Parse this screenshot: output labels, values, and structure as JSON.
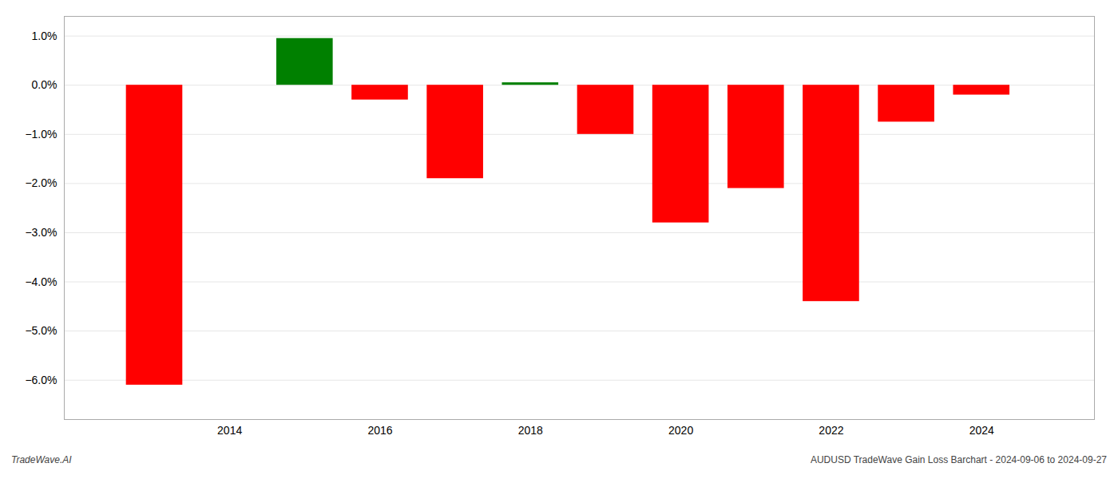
{
  "chart_data": {
    "type": "bar",
    "x": [
      2013,
      2015,
      2016,
      2017,
      2018,
      2019,
      2020,
      2021,
      2022,
      2023,
      2024
    ],
    "values": [
      -0.061,
      0.0095,
      -0.003,
      -0.019,
      0.0005,
      -0.01,
      -0.028,
      -0.021,
      -0.044,
      -0.0075,
      -0.002
    ],
    "colors": [
      "#ff0000",
      "#008000",
      "#ff0000",
      "#ff0000",
      "#008000",
      "#ff0000",
      "#ff0000",
      "#ff0000",
      "#ff0000",
      "#ff0000",
      "#ff0000"
    ],
    "xlim": [
      2011.8,
      2025.5
    ],
    "ylim": [
      -0.068,
      0.014
    ],
    "xticks": [
      2014,
      2016,
      2018,
      2020,
      2022,
      2024
    ],
    "yticks": [
      {
        "value": -0.06,
        "label": "−6.0%"
      },
      {
        "value": -0.05,
        "label": "−5.0%"
      },
      {
        "value": -0.04,
        "label": "−4.0%"
      },
      {
        "value": -0.03,
        "label": "−3.0%"
      },
      {
        "value": -0.02,
        "label": "−2.0%"
      },
      {
        "value": -0.01,
        "label": "−1.0%"
      },
      {
        "value": 0.0,
        "label": "0.0%"
      },
      {
        "value": 0.01,
        "label": "1.0%"
      }
    ],
    "grid": true,
    "annotations": [
      "TradeWave.AI",
      "AUDUSD TradeWave Gain Loss Barchart - 2024-09-06 to 2024-09-27"
    ]
  }
}
